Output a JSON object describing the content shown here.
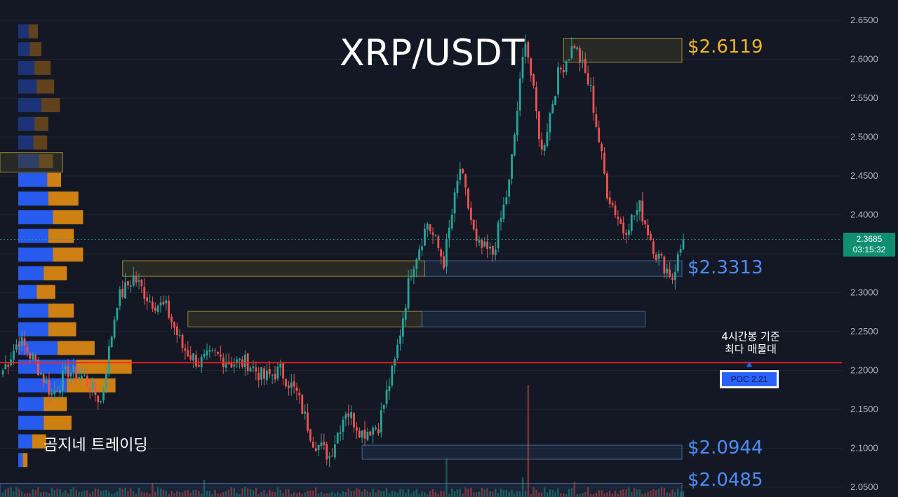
{
  "title": "XRP/USDT",
  "watermark": "곰지네 트레이딩",
  "poc": {
    "note_line1": "4시간봉 기준",
    "note_line2": "최다 매물대",
    "badge": "POC  2.21",
    "price": 2.21
  },
  "current": {
    "price": "2.3685",
    "countdown": "03:15:32",
    "value": 2.3685
  },
  "levels": [
    {
      "label": "$2.6119",
      "value": 2.6119,
      "color": "#f0b429"
    },
    {
      "label": "$2.3313",
      "value": 2.3313,
      "color": "#4d8cf5"
    },
    {
      "label": "$2.0944",
      "value": 2.0944,
      "color": "#4d8cf5"
    },
    {
      "label": "$2.0485",
      "value": 2.0485,
      "color": "#4d8cf5"
    }
  ],
  "colors": {
    "up": "#26a69a",
    "down": "#ef5350",
    "profile_blue": "#2962ff",
    "profile_orange": "#e08a12",
    "poc_line": "#ff1f1f",
    "background": "#141824"
  },
  "chart_data": {
    "type": "candlestick",
    "title": "XRP/USDT",
    "ylim": [
      2.04,
      2.665
    ],
    "y_ticks": [
      "2.6500",
      "2.6000",
      "2.5500",
      "2.5000",
      "2.4500",
      "2.4000",
      "2.3500",
      "2.3000",
      "2.2500",
      "2.2000",
      "2.1500",
      "2.1000",
      "2.0500"
    ],
    "y_tick_values": [
      2.65,
      2.6,
      2.55,
      2.5,
      2.45,
      2.4,
      2.35,
      2.3,
      2.25,
      2.2,
      2.15,
      2.1,
      2.05
    ],
    "anchors": [
      [
        0,
        2.2
      ],
      [
        6,
        2.24
      ],
      [
        12,
        2.21
      ],
      [
        18,
        2.17
      ],
      [
        24,
        2.2
      ],
      [
        30,
        2.19
      ],
      [
        36,
        2.16
      ],
      [
        42,
        2.29
      ],
      [
        48,
        2.32
      ],
      [
        54,
        2.29
      ],
      [
        60,
        2.28
      ],
      [
        66,
        2.23
      ],
      [
        72,
        2.21
      ],
      [
        78,
        2.22
      ],
      [
        84,
        2.21
      ],
      [
        90,
        2.21
      ],
      [
        96,
        2.19
      ],
      [
        102,
        2.2
      ],
      [
        108,
        2.17
      ],
      [
        114,
        2.11
      ],
      [
        120,
        2.09
      ],
      [
        126,
        2.15
      ],
      [
        132,
        2.12
      ],
      [
        138,
        2.13
      ],
      [
        144,
        2.21
      ],
      [
        150,
        2.33
      ],
      [
        156,
        2.39
      ],
      [
        162,
        2.34
      ],
      [
        168,
        2.46
      ],
      [
        174,
        2.36
      ],
      [
        180,
        2.35
      ],
      [
        186,
        2.44
      ],
      [
        192,
        2.63
      ],
      [
        198,
        2.48
      ],
      [
        204,
        2.58
      ],
      [
        210,
        2.62
      ],
      [
        216,
        2.56
      ],
      [
        222,
        2.43
      ],
      [
        228,
        2.38
      ],
      [
        234,
        2.41
      ],
      [
        240,
        2.35
      ],
      [
        246,
        2.32
      ],
      [
        250,
        2.3685
      ]
    ],
    "candle_count": 251,
    "volume_profile": [
      {
        "price": 2.635,
        "buy": 0.18,
        "sell": 0.16
      },
      {
        "price": 2.612,
        "buy": 0.2,
        "sell": 0.2
      },
      {
        "price": 2.588,
        "buy": 0.28,
        "sell": 0.28
      },
      {
        "price": 2.564,
        "buy": 0.32,
        "sell": 0.3
      },
      {
        "price": 2.54,
        "buy": 0.4,
        "sell": 0.32
      },
      {
        "price": 2.516,
        "buy": 0.28,
        "sell": 0.24
      },
      {
        "price": 2.492,
        "buy": 0.26,
        "sell": 0.24
      },
      {
        "price": 2.468,
        "buy": 0.36,
        "sell": 0.24
      },
      {
        "price": 2.444,
        "buy": 0.5,
        "sell": 0.24
      },
      {
        "price": 2.42,
        "buy": 0.52,
        "sell": 0.52
      },
      {
        "price": 2.396,
        "buy": 0.6,
        "sell": 0.52
      },
      {
        "price": 2.372,
        "buy": 0.52,
        "sell": 0.44
      },
      {
        "price": 2.348,
        "buy": 0.6,
        "sell": 0.52
      },
      {
        "price": 2.324,
        "buy": 0.44,
        "sell": 0.4
      },
      {
        "price": 2.3,
        "buy": 0.32,
        "sell": 0.32
      },
      {
        "price": 2.276,
        "buy": 0.52,
        "sell": 0.44
      },
      {
        "price": 2.252,
        "buy": 0.52,
        "sell": 0.48
      },
      {
        "price": 2.228,
        "buy": 0.68,
        "sell": 0.64
      },
      {
        "price": 2.204,
        "buy": 1.0,
        "sell": 0.96
      },
      {
        "price": 2.18,
        "buy": 0.84,
        "sell": 0.84
      },
      {
        "price": 2.156,
        "buy": 0.44,
        "sell": 0.4
      },
      {
        "price": 2.132,
        "buy": 0.44,
        "sell": 0.48
      },
      {
        "price": 2.108,
        "buy": 0.24,
        "sell": 0.24
      },
      {
        "price": 2.084,
        "buy": 0.08,
        "sell": 0.08
      }
    ],
    "zones": [
      {
        "top": 2.627,
        "bottom": 2.596,
        "start": 206,
        "end": 251,
        "kind": "yellow"
      },
      {
        "top": 2.48,
        "bottom": 2.455,
        "start": -5,
        "end": 22,
        "kind": "yellow"
      },
      {
        "top": 2.341,
        "bottom": 2.321,
        "start": 44,
        "end": 155,
        "kind": "yellow"
      },
      {
        "top": 2.341,
        "bottom": 2.321,
        "start": 155,
        "end": 251,
        "kind": "blue"
      },
      {
        "top": 2.276,
        "bottom": 2.256,
        "start": 68,
        "end": 154,
        "kind": "yellow"
      },
      {
        "top": 2.276,
        "bottom": 2.256,
        "start": 154,
        "end": 236,
        "kind": "blue"
      },
      {
        "top": 2.104,
        "bottom": 2.086,
        "start": 132,
        "end": 251,
        "kind": "blue"
      },
      {
        "top": 2.055,
        "bottom": 2.036,
        "start": -5,
        "end": 251,
        "kind": "blue"
      }
    ]
  }
}
